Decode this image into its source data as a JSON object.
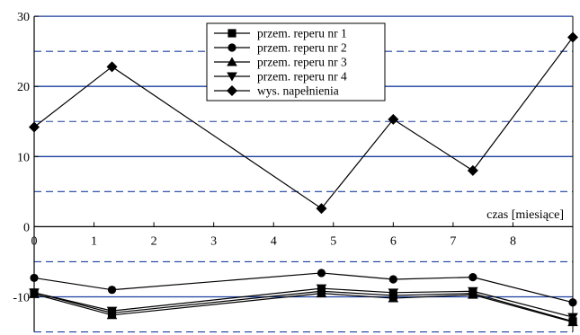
{
  "chart_data": {
    "type": "line",
    "xlabel": "czas [miesiące]",
    "ylabel": "",
    "title": "",
    "xlim": [
      0,
      9
    ],
    "ylim": [
      -15,
      30
    ],
    "x_ticks": [
      0,
      1,
      2,
      3,
      4,
      5,
      6,
      7,
      8
    ],
    "y_ticks": [
      30,
      20,
      10,
      0,
      -10
    ],
    "grid": "horizontal lines every 5 (solid at multiples of 10, dashed otherwise)",
    "legend": "top-center",
    "x": [
      0,
      1.3,
      4.8,
      6,
      7.33,
      9
    ],
    "series": [
      {
        "name": "przem. reperu nr 1",
        "marker": "square",
        "values": [
          -9.4,
          -12.3,
          -9.2,
          -9.8,
          -9.5,
          -13.5
        ]
      },
      {
        "name": "przem. reperu nr 2",
        "marker": "circle",
        "values": [
          -7.3,
          -9.0,
          -6.6,
          -7.5,
          -7.2,
          -10.8
        ]
      },
      {
        "name": "przem. reperu nr 3",
        "marker": "triangle-up",
        "values": [
          -9.6,
          -12.6,
          -9.5,
          -10.2,
          -9.7,
          -13.6
        ]
      },
      {
        "name": "przem. reperu nr 4",
        "marker": "triangle-down",
        "values": [
          -9.4,
          -12.0,
          -8.8,
          -9.4,
          -9.2,
          -12.9
        ]
      },
      {
        "name": "wys. napełnienia",
        "marker": "diamond",
        "values": [
          14.2,
          22.8,
          2.6,
          15.3,
          8.0,
          27.0
        ]
      }
    ]
  }
}
